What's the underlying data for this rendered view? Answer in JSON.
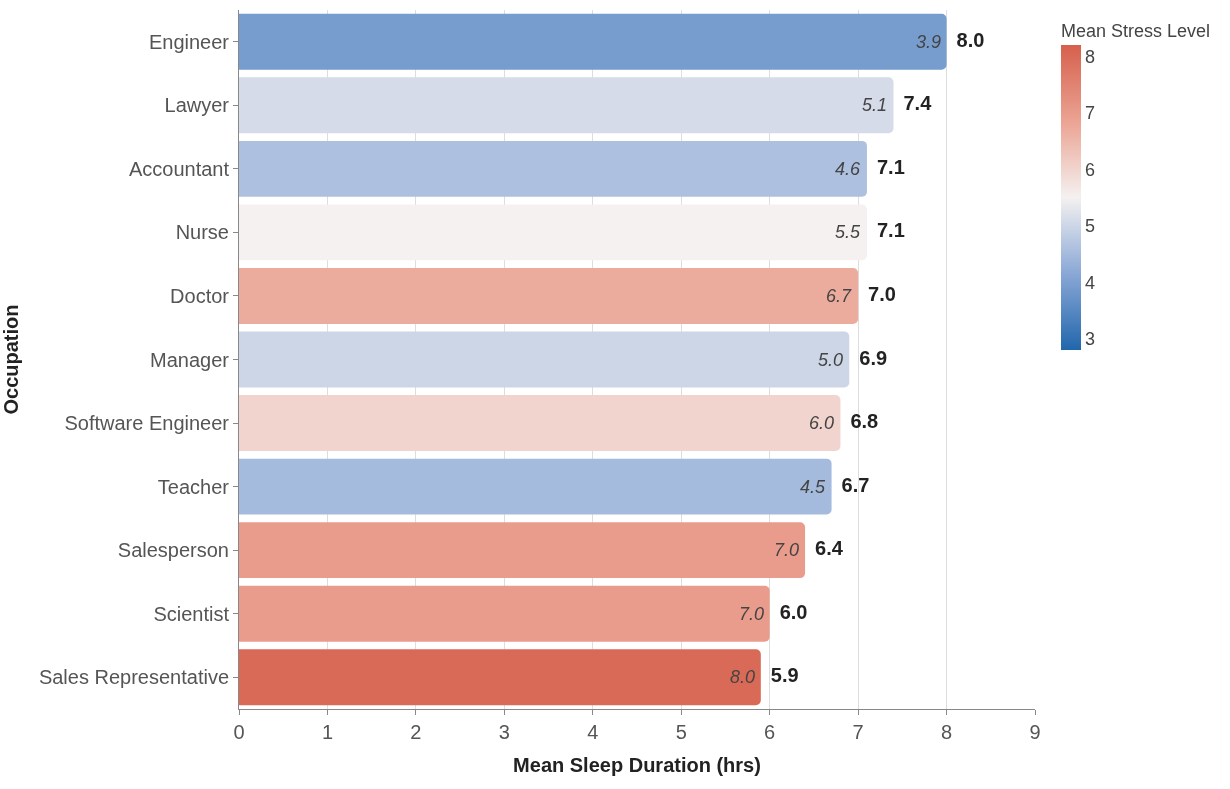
{
  "chart_data": {
    "type": "bar",
    "orientation": "horizontal",
    "xlabel": "Mean Sleep Duration (hrs)",
    "ylabel": "Occupation",
    "clabel": "Mean Stress Level",
    "categories": [
      "Engineer",
      "Lawyer",
      "Accountant",
      "Nurse",
      "Doctor",
      "Manager",
      "Software Engineer",
      "Teacher",
      "Salesperson",
      "Scientist",
      "Sales Representative"
    ],
    "values": [
      8.0,
      7.4,
      7.1,
      7.1,
      7.0,
      6.9,
      6.8,
      6.7,
      6.4,
      6.0,
      5.9
    ],
    "cvalues": [
      3.9,
      5.1,
      4.6,
      5.5,
      6.7,
      5.0,
      6.0,
      4.5,
      7.0,
      7.0,
      8.0
    ],
    "clim": [
      2.8,
      8.2
    ],
    "cticks": [
      3,
      4,
      5,
      6,
      7,
      8
    ],
    "value_labels": [
      "8.0",
      "7.4",
      "7.1",
      "7.1",
      "7.0",
      "6.9",
      "6.8",
      "6.7",
      "6.4",
      "6.0",
      "5.9"
    ],
    "annotations": [
      {
        "text": "3.9",
        "x": 8.0,
        "y": "Engineer"
      },
      {
        "text": "5.1",
        "x": 7.4,
        "y": "Lawyer"
      },
      {
        "text": "4.6",
        "x": 7.1,
        "y": "Accountant"
      },
      {
        "text": "5.5",
        "x": 7.1,
        "y": "Nurse"
      },
      {
        "text": "6.7",
        "x": 7.0,
        "y": "Doctor"
      },
      {
        "text": "5.0",
        "x": 6.9,
        "y": "Manager"
      },
      {
        "text": "6.0",
        "x": 6.8,
        "y": "Software Engineer"
      },
      {
        "text": "4.5",
        "x": 6.7,
        "y": "Teacher"
      },
      {
        "text": "7.0",
        "x": 6.4,
        "y": "Salesperson"
      },
      {
        "text": "7.0",
        "x": 6.0,
        "y": "Scientist"
      },
      {
        "text": "8.0",
        "x": 5.9,
        "y": "Sales Representative"
      }
    ],
    "xlim": [
      0,
      9
    ],
    "xticks": [
      0,
      1,
      2,
      3,
      4,
      5,
      6,
      7,
      8,
      9
    ],
    "grid": "x"
  }
}
